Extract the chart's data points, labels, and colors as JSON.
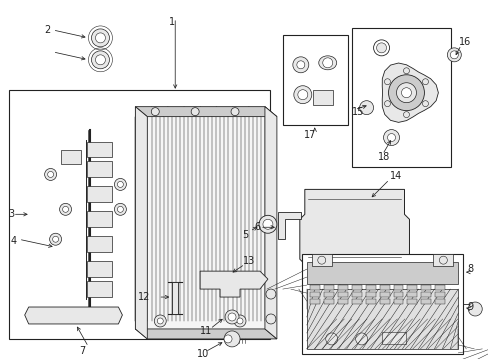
{
  "bg_color": "#ffffff",
  "fig_width": 4.89,
  "fig_height": 3.6,
  "dpi": 100,
  "line_color": "#222222",
  "fill_light": "#e8e8e8",
  "fill_mid": "#cccccc",
  "fill_dark": "#aaaaaa"
}
